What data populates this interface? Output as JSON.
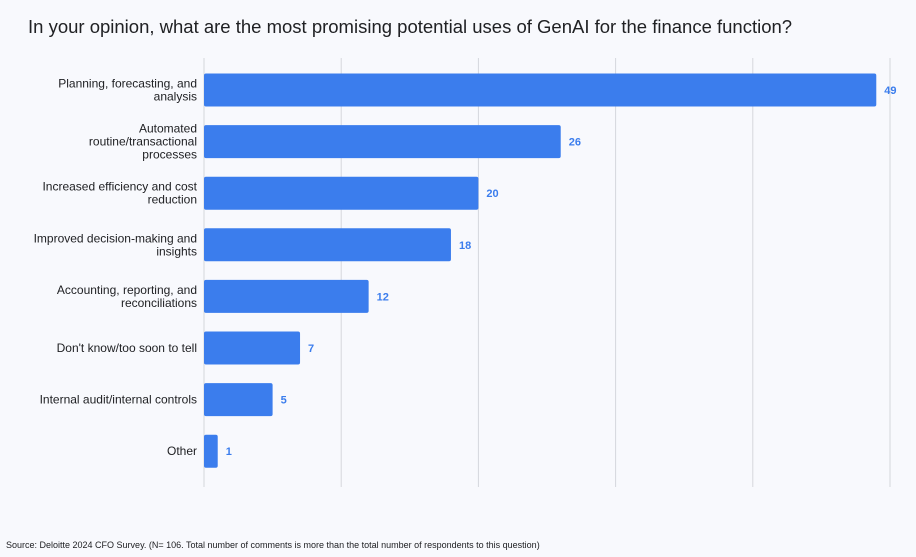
{
  "title": "In your opinion, what are the most promising potential uses of GenAI for the finance function?",
  "source": "Source: Deloitte 2024 CFO Survey. (N= 106. Total number of comments is more than the total number of respondents to this question)",
  "colors": {
    "bar": "#3b7ded",
    "label": "#3b7ded",
    "grid": "#d5d7dc",
    "text": "#202124"
  },
  "chart_data": {
    "type": "bar",
    "orientation": "horizontal",
    "categories": [
      [
        "Planning, forecasting, and",
        "analysis"
      ],
      [
        "Automated",
        "routine/transactional",
        "processes"
      ],
      [
        "Increased efficiency and cost",
        "reduction"
      ],
      [
        "Improved decision-making and",
        "insights"
      ],
      [
        "Accounting, reporting, and",
        "reconciliations"
      ],
      [
        "Don't know/too soon to tell"
      ],
      [
        "Internal audit/internal controls"
      ],
      [
        "Other"
      ]
    ],
    "values": [
      49,
      26,
      20,
      18,
      12,
      7,
      5,
      1
    ],
    "xlim": [
      0,
      50
    ],
    "xticks": [
      0,
      10,
      20,
      30,
      40,
      50
    ],
    "grid": true,
    "legend": "none"
  }
}
